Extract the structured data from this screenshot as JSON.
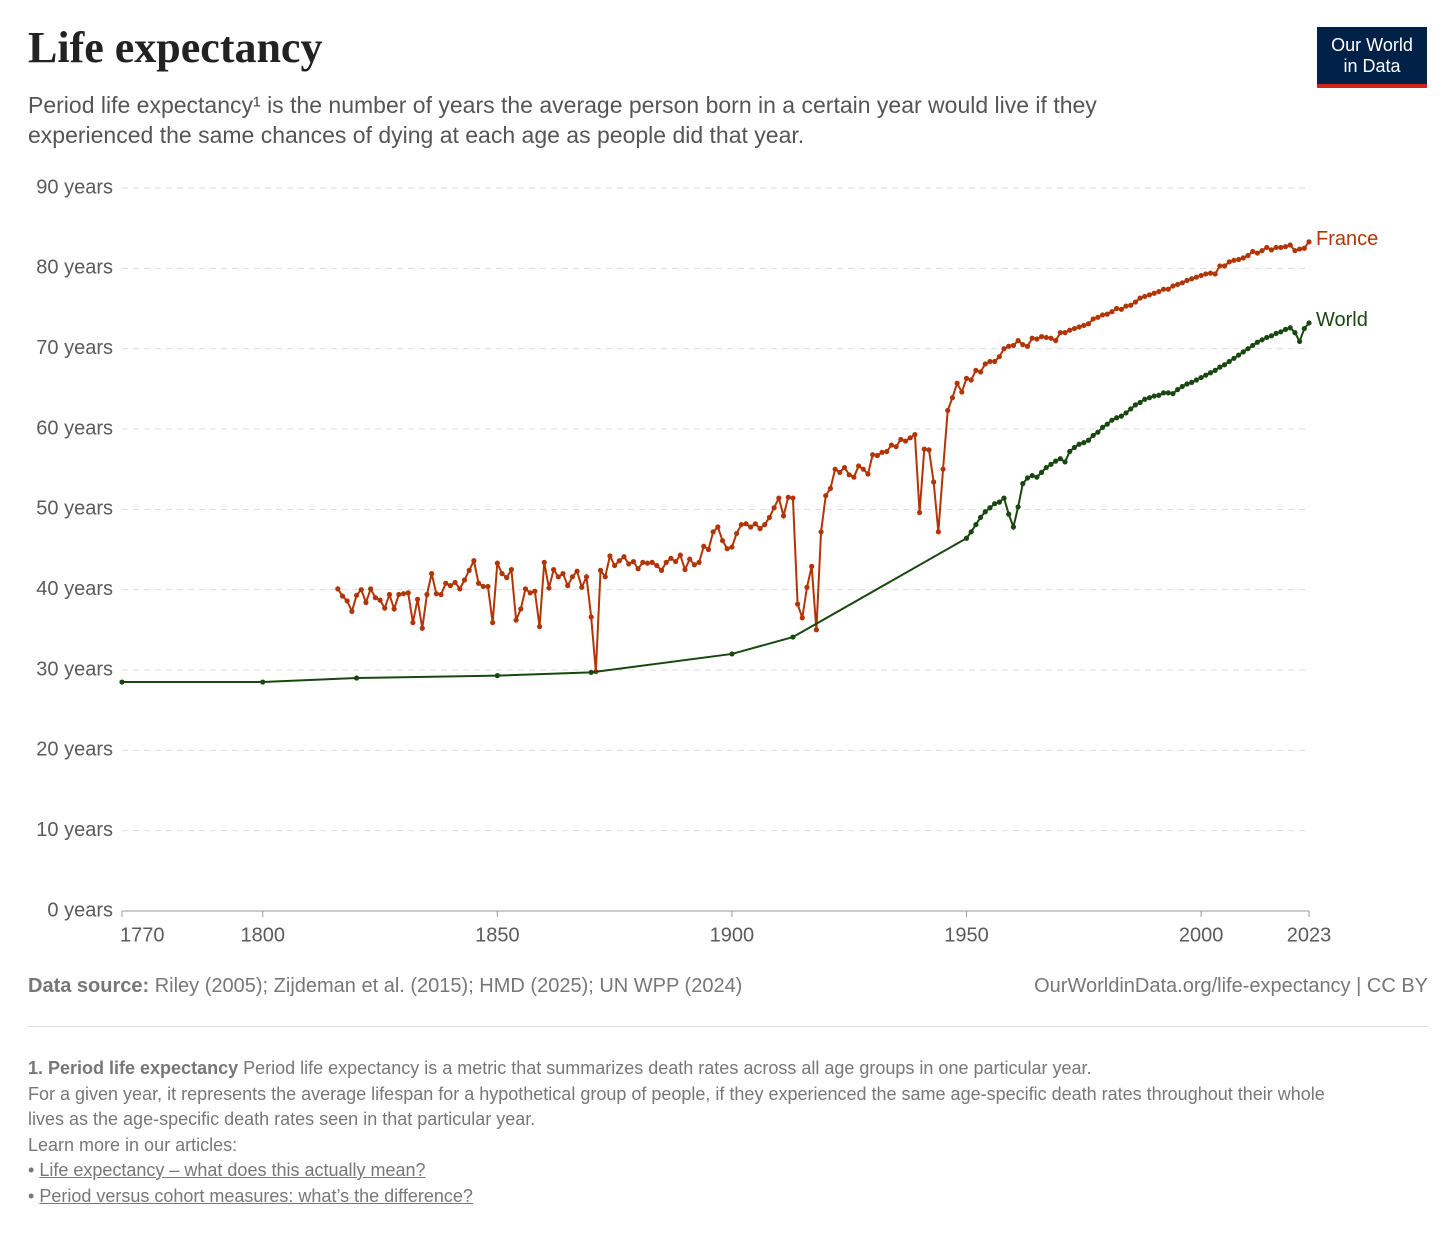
{
  "header": {
    "title": "Life expectancy",
    "subtitle": "Period life expectancy¹ is the number of years the average person born in a certain year would live if they experienced the same chances of dying at each age as people did that year.",
    "logo": [
      "Our World",
      "in Data"
    ]
  },
  "chart_data": {
    "type": "line",
    "xlim": [
      1770,
      2023
    ],
    "xticks": [
      1770,
      1800,
      1850,
      1900,
      1950,
      2000,
      2023
    ],
    "ylim": [
      0,
      90
    ],
    "yticks": [
      {
        "value": 0,
        "label": "0 years"
      },
      {
        "value": 10,
        "label": "10 years"
      },
      {
        "value": 20,
        "label": "20 years"
      },
      {
        "value": 30,
        "label": "30 years"
      },
      {
        "value": 40,
        "label": "40 years"
      },
      {
        "value": 50,
        "label": "50 years"
      },
      {
        "value": 60,
        "label": "60 years"
      },
      {
        "value": 70,
        "label": "70 years"
      },
      {
        "value": 80,
        "label": "80 years"
      },
      {
        "value": 90,
        "label": "90 years"
      }
    ],
    "grid": true,
    "series": [
      {
        "name": "France",
        "color": "#b13507",
        "x": [
          1816,
          1817,
          1818,
          1819,
          1820,
          1821,
          1822,
          1823,
          1824,
          1825,
          1826,
          1827,
          1828,
          1829,
          1830,
          1831,
          1832,
          1833,
          1834,
          1835,
          1836,
          1837,
          1838,
          1839,
          1840,
          1841,
          1842,
          1843,
          1844,
          1845,
          1846,
          1847,
          1848,
          1849,
          1850,
          1851,
          1852,
          1853,
          1854,
          1855,
          1856,
          1857,
          1858,
          1859,
          1860,
          1861,
          1862,
          1863,
          1864,
          1865,
          1866,
          1867,
          1868,
          1869,
          1870,
          1871,
          1872,
          1873,
          1874,
          1875,
          1876,
          1877,
          1878,
          1879,
          1880,
          1881,
          1882,
          1883,
          1884,
          1885,
          1886,
          1887,
          1888,
          1889,
          1890,
          1891,
          1892,
          1893,
          1894,
          1895,
          1896,
          1897,
          1898,
          1899,
          1900,
          1901,
          1902,
          1903,
          1904,
          1905,
          1906,
          1907,
          1908,
          1909,
          1910,
          1911,
          1912,
          1913,
          1914,
          1915,
          1916,
          1917,
          1918,
          1919,
          1920,
          1921,
          1922,
          1923,
          1924,
          1925,
          1926,
          1927,
          1928,
          1929,
          1930,
          1931,
          1932,
          1933,
          1934,
          1935,
          1936,
          1937,
          1938,
          1939,
          1940,
          1941,
          1942,
          1943,
          1944,
          1945,
          1946,
          1947,
          1948,
          1949,
          1950,
          1951,
          1952,
          1953,
          1954,
          1955,
          1956,
          1957,
          1958,
          1959,
          1960,
          1961,
          1962,
          1963,
          1964,
          1965,
          1966,
          1967,
          1968,
          1969,
          1970,
          1971,
          1972,
          1973,
          1974,
          1975,
          1976,
          1977,
          1978,
          1979,
          1980,
          1981,
          1982,
          1983,
          1984,
          1985,
          1986,
          1987,
          1988,
          1989,
          1990,
          1991,
          1992,
          1993,
          1994,
          1995,
          1996,
          1997,
          1998,
          1999,
          2000,
          2001,
          2002,
          2003,
          2004,
          2005,
          2006,
          2007,
          2008,
          2009,
          2010,
          2011,
          2012,
          2013,
          2014,
          2015,
          2016,
          2017,
          2018,
          2019,
          2020,
          2021,
          2022,
          2023
        ],
        "values": [
          40.1,
          39.2,
          38.6,
          37.3,
          39.3,
          40.0,
          38.4,
          40.1,
          39.0,
          38.7,
          37.7,
          39.4,
          37.6,
          39.4,
          39.5,
          39.6,
          35.9,
          38.8,
          35.2,
          39.4,
          42.0,
          39.5,
          39.4,
          40.8,
          40.5,
          40.9,
          40.1,
          41.2,
          42.4,
          43.6,
          40.8,
          40.4,
          40.4,
          35.9,
          43.3,
          42.0,
          41.5,
          42.5,
          36.2,
          37.6,
          40.1,
          39.6,
          39.8,
          35.4,
          43.4,
          40.2,
          42.5,
          41.6,
          42.0,
          40.5,
          41.6,
          42.3,
          40.3,
          41.6,
          36.6,
          29.8,
          42.4,
          41.6,
          44.2,
          43.0,
          43.6,
          44.1,
          43.2,
          43.5,
          42.6,
          43.4,
          43.3,
          43.4,
          43.0,
          42.4,
          43.4,
          43.9,
          43.5,
          44.3,
          42.5,
          43.8,
          43.1,
          43.4,
          45.4,
          45.0,
          47.2,
          47.8,
          46.1,
          45.1,
          45.3,
          47.0,
          48.1,
          48.2,
          47.8,
          48.2,
          47.6,
          48.1,
          49.0,
          50.2,
          51.4,
          49.2,
          51.5,
          51.4,
          38.2,
          36.5,
          40.3,
          42.9,
          35.0,
          47.2,
          51.7,
          52.6,
          55.0,
          54.6,
          55.2,
          54.3,
          54.0,
          55.4,
          55.0,
          54.4,
          56.8,
          56.7,
          57.1,
          57.2,
          58.0,
          57.8,
          58.7,
          58.5,
          58.9,
          59.3,
          49.6,
          57.5,
          57.4,
          53.4,
          47.2,
          55.0,
          62.3,
          63.9,
          65.7,
          64.6,
          66.3,
          66.1,
          67.3,
          67.1,
          68.1,
          68.4,
          68.4,
          69.0,
          70.0,
          70.3,
          70.4,
          71.0,
          70.5,
          70.3,
          71.3,
          71.2,
          71.5,
          71.4,
          71.3,
          71.0,
          72.0,
          72.0,
          72.3,
          72.5,
          72.7,
          72.9,
          73.1,
          73.7,
          73.9,
          74.2,
          74.3,
          74.6,
          75.0,
          74.9,
          75.3,
          75.4,
          75.8,
          76.3,
          76.5,
          76.7,
          76.9,
          77.1,
          77.4,
          77.4,
          77.8,
          78.0,
          78.2,
          78.5,
          78.7,
          78.9,
          79.1,
          79.3,
          79.4,
          79.3,
          80.3,
          80.3,
          80.8,
          81.0,
          81.1,
          81.3,
          81.6,
          82.1,
          81.9,
          82.2,
          82.6,
          82.3,
          82.6,
          82.6,
          82.7,
          82.9,
          82.2,
          82.4,
          82.5,
          83.3
        ]
      },
      {
        "name": "World",
        "color": "#18470f",
        "x": [
          1770,
          1800,
          1820,
          1850,
          1870,
          1900,
          1913,
          1950,
          1951,
          1952,
          1953,
          1954,
          1955,
          1956,
          1957,
          1958,
          1959,
          1960,
          1961,
          1962,
          1963,
          1964,
          1965,
          1966,
          1967,
          1968,
          1969,
          1970,
          1971,
          1972,
          1973,
          1974,
          1975,
          1976,
          1977,
          1978,
          1979,
          1980,
          1981,
          1982,
          1983,
          1984,
          1985,
          1986,
          1987,
          1988,
          1989,
          1990,
          1991,
          1992,
          1993,
          1994,
          1995,
          1996,
          1997,
          1998,
          1999,
          2000,
          2001,
          2002,
          2003,
          2004,
          2005,
          2006,
          2007,
          2008,
          2009,
          2010,
          2011,
          2012,
          2013,
          2014,
          2015,
          2016,
          2017,
          2018,
          2019,
          2020,
          2021,
          2022,
          2023
        ],
        "values": [
          28.5,
          28.5,
          29.0,
          29.3,
          29.7,
          32.0,
          34.1,
          46.4,
          47.2,
          48.1,
          49.0,
          49.7,
          50.2,
          50.7,
          50.9,
          51.4,
          49.4,
          47.8,
          50.3,
          53.2,
          53.9,
          54.2,
          54.0,
          54.6,
          55.2,
          55.6,
          56.0,
          56.3,
          55.9,
          57.2,
          57.7,
          58.1,
          58.3,
          58.6,
          59.2,
          59.6,
          60.2,
          60.6,
          61.1,
          61.4,
          61.6,
          62.0,
          62.5,
          63.0,
          63.3,
          63.7,
          63.9,
          64.1,
          64.2,
          64.5,
          64.5,
          64.4,
          64.9,
          65.3,
          65.6,
          65.8,
          66.1,
          66.4,
          66.7,
          67.0,
          67.3,
          67.7,
          68.0,
          68.4,
          68.8,
          69.2,
          69.6,
          70.0,
          70.4,
          70.8,
          71.1,
          71.4,
          71.6,
          71.9,
          72.1,
          72.4,
          72.6,
          72.0,
          70.9,
          72.5,
          73.2
        ]
      }
    ]
  },
  "source": {
    "label": "Data source:",
    "text": "Riley (2005); Zijdeman et al. (2015); HMD (2025); UN WPP (2024)",
    "url": "OurWorldinData.org/life-expectancy | CC BY"
  },
  "footnote": {
    "label": "1. Period life expectancy",
    "lines": [
      "Period life expectancy is a metric that summarizes death rates across all age groups in one particular year.",
      "For a given year, it represents the average lifespan for a hypothetical group of people, if they experienced the same age-specific death rates throughout their whole lives as the age-specific death rates seen in that particular year.",
      "Learn more in our articles:"
    ],
    "links": [
      "Life expectancy – what does this actually mean?",
      "Period versus cohort measures: what’s the difference?"
    ]
  }
}
